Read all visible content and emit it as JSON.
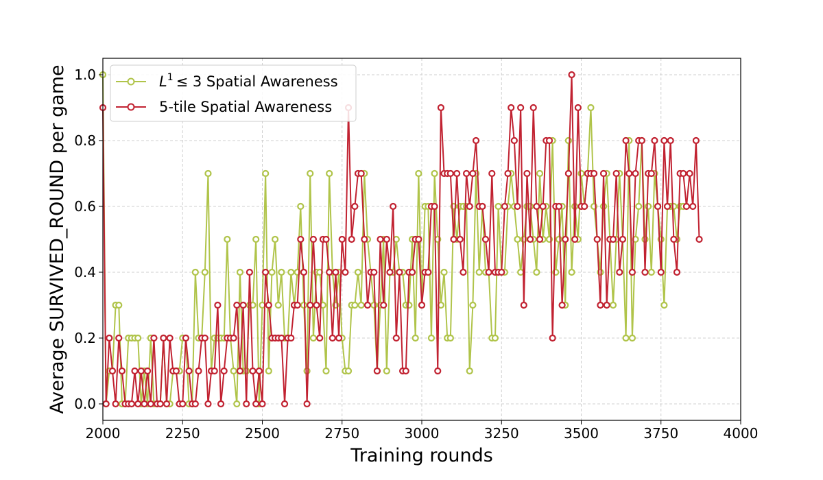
{
  "chart_data": {
    "type": "line",
    "title": "",
    "xlabel": "Training rounds",
    "ylabel": "Average SURVIVED_ROUND per game",
    "xlim": [
      2000,
      4000
    ],
    "ylim": [
      -0.05,
      1.05
    ],
    "xticks": [
      2000,
      2250,
      2500,
      2750,
      3000,
      3250,
      3500,
      3750,
      4000
    ],
    "yticks": [
      0.0,
      0.2,
      0.4,
      0.6,
      0.8,
      1.0
    ],
    "xtick_labels": [
      "2000",
      "2250",
      "2500",
      "2750",
      "3000",
      "3250",
      "3500",
      "3750",
      "4000"
    ],
    "ytick_labels": [
      "0.0",
      "0.2",
      "0.4",
      "0.6",
      "0.8",
      "1.0"
    ],
    "grid": true,
    "legend_position": "top-left",
    "x_start": 2000,
    "x_step": 10,
    "series": [
      {
        "name": "L¹ ≤ 3 Spatial Awareness",
        "name_parts": {
          "base": "L",
          "sup": "1",
          "rest": "≤ 3 Spatial Awareness"
        },
        "color": "#b0c44a",
        "values": [
          1.0,
          0.0,
          0.1,
          0.1,
          0.3,
          0.3,
          0.0,
          0.0,
          0.2,
          0.2,
          0.2,
          0.2,
          0.0,
          0.1,
          0.0,
          0.2,
          0.0,
          0.0,
          0.0,
          0.2,
          0.0,
          0.0,
          0.1,
          0.1,
          0.1,
          0.2,
          0.2,
          0.0,
          0.0,
          0.4,
          0.2,
          0.2,
          0.4,
          0.7,
          0.1,
          0.2,
          0.2,
          0.2,
          0.2,
          0.5,
          0.2,
          0.1,
          0.0,
          0.4,
          0.1,
          0.1,
          0.3,
          0.3,
          0.5,
          0.0,
          0.3,
          0.7,
          0.1,
          0.4,
          0.5,
          0.3,
          0.4,
          0.2,
          0.2,
          0.4,
          0.3,
          0.4,
          0.6,
          0.3,
          0.1,
          0.7,
          0.2,
          0.4,
          0.4,
          0.3,
          0.1,
          0.7,
          0.4,
          0.3,
          0.4,
          0.2,
          0.1,
          0.1,
          0.3,
          0.3,
          0.4,
          0.3,
          0.7,
          0.5,
          0.4,
          0.3,
          0.1,
          0.3,
          0.5,
          0.1,
          0.4,
          0.4,
          0.5,
          0.4,
          0.4,
          0.3,
          0.3,
          0.5,
          0.2,
          0.7,
          0.3,
          0.6,
          0.6,
          0.2,
          0.7,
          0.5,
          0.3,
          0.4,
          0.2,
          0.2,
          0.6,
          0.5,
          0.6,
          0.6,
          0.6,
          0.1,
          0.3,
          0.7,
          0.4,
          0.6,
          0.4,
          0.4,
          0.2,
          0.2,
          0.6,
          0.4,
          0.4,
          0.6,
          0.7,
          0.6,
          0.5,
          0.4,
          0.5,
          0.6,
          0.6,
          0.5,
          0.4,
          0.7,
          0.5,
          0.6,
          0.5,
          0.8,
          0.4,
          0.5,
          0.6,
          0.3,
          0.8,
          0.4,
          0.6,
          0.5,
          0.7,
          0.6,
          0.7,
          0.9,
          0.6,
          0.5,
          0.4,
          0.6,
          0.7,
          0.5,
          0.3,
          0.5,
          0.7,
          0.5,
          0.2,
          0.8,
          0.2,
          0.5,
          0.6,
          0.8,
          0.5,
          0.6,
          0.4,
          0.7,
          0.6,
          0.5,
          0.3,
          0.6,
          0.6,
          0.6,
          0.5,
          0.6,
          0.6
        ]
      },
      {
        "name": "5-tile Spatial Awareness",
        "color": "#c12231",
        "values": [
          0.9,
          0.0,
          0.2,
          0.1,
          0.0,
          0.2,
          0.1,
          0.0,
          0.0,
          0.0,
          0.1,
          0.0,
          0.1,
          0.0,
          0.1,
          0.0,
          0.2,
          0.0,
          0.0,
          0.2,
          0.0,
          0.2,
          0.1,
          0.1,
          0.0,
          0.0,
          0.2,
          0.1,
          0.0,
          0.0,
          0.1,
          0.2,
          0.2,
          0.0,
          0.1,
          0.1,
          0.3,
          0.0,
          0.1,
          0.2,
          0.2,
          0.2,
          0.3,
          0.1,
          0.3,
          0.0,
          0.4,
          0.1,
          0.0,
          0.1,
          0.0,
          0.4,
          0.3,
          0.2,
          0.2,
          0.2,
          0.2,
          0.0,
          0.2,
          0.2,
          0.3,
          0.3,
          0.5,
          0.4,
          0.0,
          0.3,
          0.5,
          0.3,
          0.2,
          0.5,
          0.5,
          0.4,
          0.2,
          0.4,
          0.2,
          0.5,
          0.4,
          0.9,
          0.5,
          0.6,
          0.7,
          0.7,
          0.5,
          0.3,
          0.4,
          0.4,
          0.1,
          0.5,
          0.3,
          0.5,
          0.4,
          0.6,
          0.2,
          0.4,
          0.1,
          0.1,
          0.4,
          0.4,
          0.5,
          0.5,
          0.3,
          0.4,
          0.4,
          0.6,
          0.6,
          0.1,
          0.9,
          0.7,
          0.7,
          0.7,
          0.5,
          0.7,
          0.5,
          0.4,
          0.7,
          0.6,
          0.7,
          0.8,
          0.6,
          0.6,
          0.5,
          0.4,
          0.7,
          0.4,
          0.4,
          0.4,
          0.6,
          0.7,
          0.9,
          0.8,
          0.6,
          0.9,
          0.3,
          0.7,
          0.5,
          0.9,
          0.6,
          0.5,
          0.6,
          0.8,
          0.8,
          0.2,
          0.6,
          0.6,
          0.3,
          0.5,
          0.7,
          1.0,
          0.5,
          0.9,
          0.6,
          0.6,
          0.7,
          0.7,
          0.7,
          0.5,
          0.3,
          0.7,
          0.3,
          0.5,
          0.5,
          0.7,
          0.4,
          0.5,
          0.8,
          0.7,
          0.4,
          0.7,
          0.8,
          0.8,
          0.4,
          0.7,
          0.7,
          0.8,
          0.6,
          0.4,
          0.8,
          0.6,
          0.8,
          0.5,
          0.4,
          0.7,
          0.7,
          0.6,
          0.7,
          0.6,
          0.8,
          0.5
        ]
      }
    ]
  }
}
